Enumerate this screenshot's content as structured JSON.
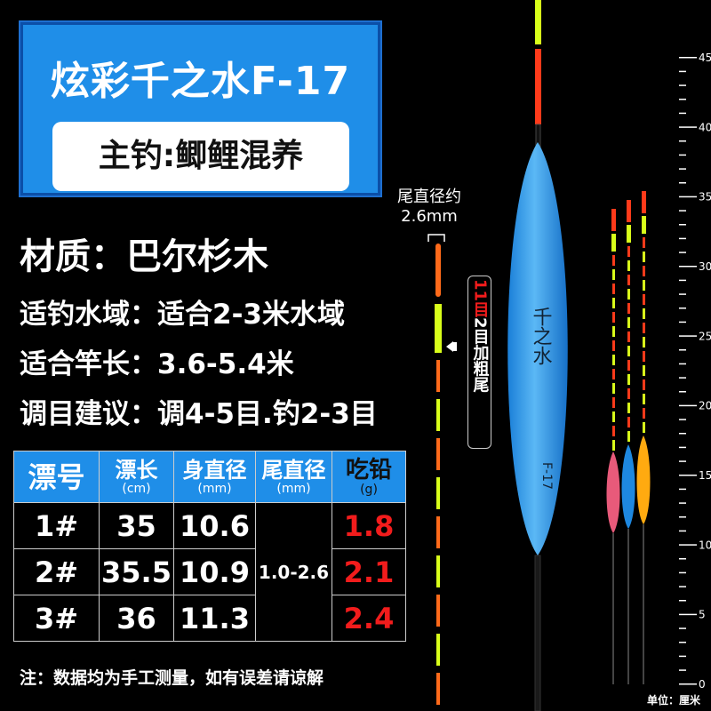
{
  "header": {
    "title": "炫彩千之水F-17",
    "subtitle": "主钓:鲫鲤混养"
  },
  "specs": {
    "material": "材质：巴尔杉木",
    "water": "适钓水域：适合2-3米水域",
    "rod": "适合竿长：3.6-5.4米",
    "tuning": "调目建议：调4-5目.钓2-3目"
  },
  "table": {
    "headers": [
      {
        "label": "漂号",
        "unit": ""
      },
      {
        "label": "漂长",
        "unit": "(cm)"
      },
      {
        "label": "身直径",
        "unit": "(mm)"
      },
      {
        "label": "尾直径",
        "unit": "(mm)"
      },
      {
        "label": "吃铅",
        "unit": "(g)"
      }
    ],
    "rows": [
      {
        "no": "1#",
        "length": "35",
        "body": "10.6",
        "lead": "1.8"
      },
      {
        "no": "2#",
        "length": "35.5",
        "body": "10.9",
        "lead": "2.1"
      },
      {
        "no": "3#",
        "length": "36",
        "body": "11.3",
        "lead": "2.4"
      }
    ],
    "tail_diameter": "1.0-2.6"
  },
  "note": "注：数据均为手工测量，如有误差请谅解",
  "tail": {
    "label": "尾直径约",
    "value": "2.6mm"
  },
  "vertical": {
    "red": "11目",
    "white": "2目加粗尾"
  },
  "ruler": {
    "labels": [
      "45",
      "40",
      "35",
      "30",
      "25",
      "20",
      "15",
      "10",
      "5",
      "0"
    ],
    "unit": "单位：厘米"
  },
  "float_brand": "千之水",
  "float_model": "F-17",
  "colors": {
    "blue": "#1f8ee8",
    "red": "#f21c1c",
    "tip_orange": "#ff6a1a",
    "tip_yellow": "#d8ff1a"
  }
}
